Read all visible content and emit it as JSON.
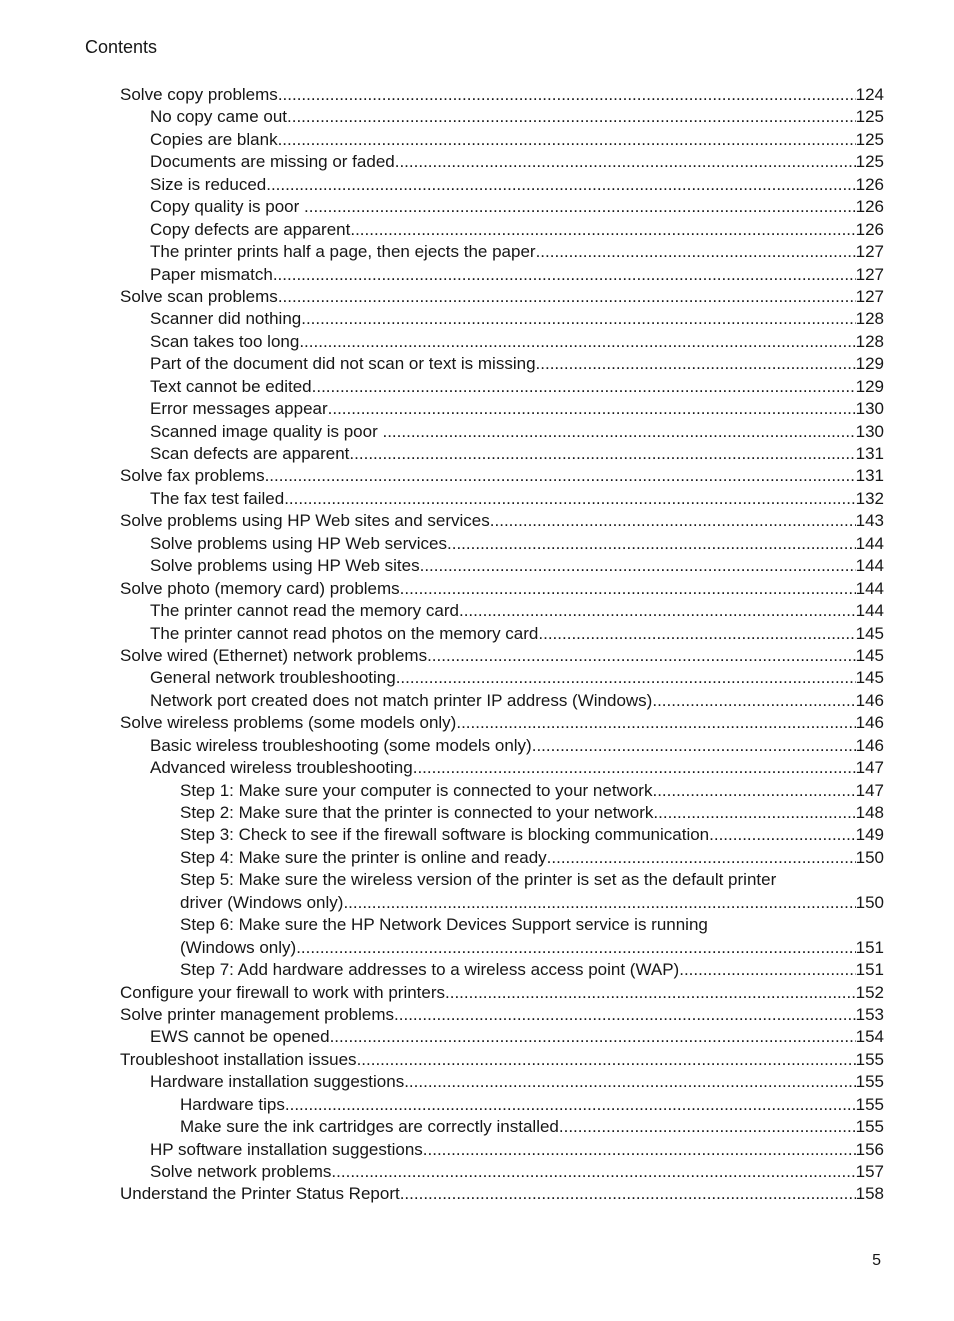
{
  "page": {
    "header": "Contents",
    "page_number": "5"
  },
  "toc": {
    "entries": [
      {
        "level": 0,
        "label": "Solve copy problems",
        "page": "124"
      },
      {
        "level": 1,
        "label": "No copy came out",
        "page": "125"
      },
      {
        "level": 1,
        "label": "Copies are blank",
        "page": "125"
      },
      {
        "level": 1,
        "label": "Documents are missing or faded",
        "page": "125"
      },
      {
        "level": 1,
        "label": "Size is reduced",
        "page": "126"
      },
      {
        "level": 1,
        "label": "Copy quality is poor ",
        "page": "126"
      },
      {
        "level": 1,
        "label": "Copy defects are apparent",
        "page": "126"
      },
      {
        "level": 1,
        "label": "The printer prints half a page, then ejects the paper",
        "page": "127"
      },
      {
        "level": 1,
        "label": "Paper mismatch",
        "page": "127"
      },
      {
        "level": 0,
        "label": "Solve scan problems",
        "page": "127"
      },
      {
        "level": 1,
        "label": "Scanner did nothing",
        "page": "128"
      },
      {
        "level": 1,
        "label": "Scan takes too long",
        "page": "128"
      },
      {
        "level": 1,
        "label": "Part of the document did not scan or text is missing",
        "page": "129"
      },
      {
        "level": 1,
        "label": "Text cannot be edited",
        "page": "129"
      },
      {
        "level": 1,
        "label": "Error messages appear",
        "page": "130"
      },
      {
        "level": 1,
        "label": "Scanned image quality is poor ",
        "page": "130"
      },
      {
        "level": 1,
        "label": "Scan defects are apparent",
        "page": "131"
      },
      {
        "level": 0,
        "label": "Solve fax problems",
        "page": "131"
      },
      {
        "level": 1,
        "label": "The fax test failed",
        "page": "132"
      },
      {
        "level": 0,
        "label": "Solve problems using HP Web sites and services",
        "page": "143"
      },
      {
        "level": 1,
        "label": "Solve problems using HP Web services",
        "page": "144"
      },
      {
        "level": 1,
        "label": "Solve problems using HP Web sites",
        "page": "144"
      },
      {
        "level": 0,
        "label": "Solve photo (memory card) problems",
        "page": "144"
      },
      {
        "level": 1,
        "label": "The printer cannot read the memory card",
        "page": "144"
      },
      {
        "level": 1,
        "label": "The printer cannot read photos on the memory card",
        "page": "145"
      },
      {
        "level": 0,
        "label": "Solve wired (Ethernet) network problems",
        "page": "145"
      },
      {
        "level": 1,
        "label": "General network troubleshooting",
        "page": "145"
      },
      {
        "level": 1,
        "label": "Network port created does not match printer IP address (Windows)",
        "page": "146"
      },
      {
        "level": 0,
        "label": "Solve wireless problems (some models only)",
        "page": "146"
      },
      {
        "level": 1,
        "label": "Basic wireless troubleshooting (some models only)",
        "page": "146"
      },
      {
        "level": 1,
        "label": "Advanced wireless troubleshooting",
        "page": "147"
      },
      {
        "level": 2,
        "label": "Step 1: Make sure your computer is connected to your network",
        "page": "147"
      },
      {
        "level": 2,
        "label": "Step 2: Make sure that the printer is connected to your network",
        "page": "148"
      },
      {
        "level": 2,
        "label": "Step 3: Check to see if the firewall software is blocking communication",
        "page": "149"
      },
      {
        "level": 2,
        "label": "Step 4: Make sure the printer is online and ready",
        "page": "150"
      },
      {
        "level": 2,
        "label": "Step 5: Make sure the wireless version of the printer is set as the default printer",
        "label2": "driver (Windows only)",
        "page": "150"
      },
      {
        "level": 2,
        "label": "Step 6: Make sure the HP Network Devices Support service is running",
        "label2": "(Windows only)",
        "page": "151"
      },
      {
        "level": 2,
        "label": "Step 7: Add hardware addresses to a wireless access point (WAP)",
        "page": "151"
      },
      {
        "level": 0,
        "label": "Configure your firewall to work with printers",
        "page": "152"
      },
      {
        "level": 0,
        "label": "Solve printer management problems",
        "page": "153"
      },
      {
        "level": 1,
        "label": "EWS cannot be opened",
        "page": "154"
      },
      {
        "level": 0,
        "label": "Troubleshoot installation issues",
        "page": "155"
      },
      {
        "level": 1,
        "label": "Hardware installation suggestions",
        "page": "155"
      },
      {
        "level": 2,
        "label": "Hardware tips",
        "page": "155"
      },
      {
        "level": 2,
        "label": "Make sure the ink cartridges are correctly installed",
        "page": "155"
      },
      {
        "level": 1,
        "label": "HP software installation suggestions",
        "page": "156"
      },
      {
        "level": 1,
        "label": "Solve network problems",
        "page": "157"
      },
      {
        "level": 0,
        "label": "Understand the Printer Status Report",
        "page": "158"
      }
    ]
  }
}
